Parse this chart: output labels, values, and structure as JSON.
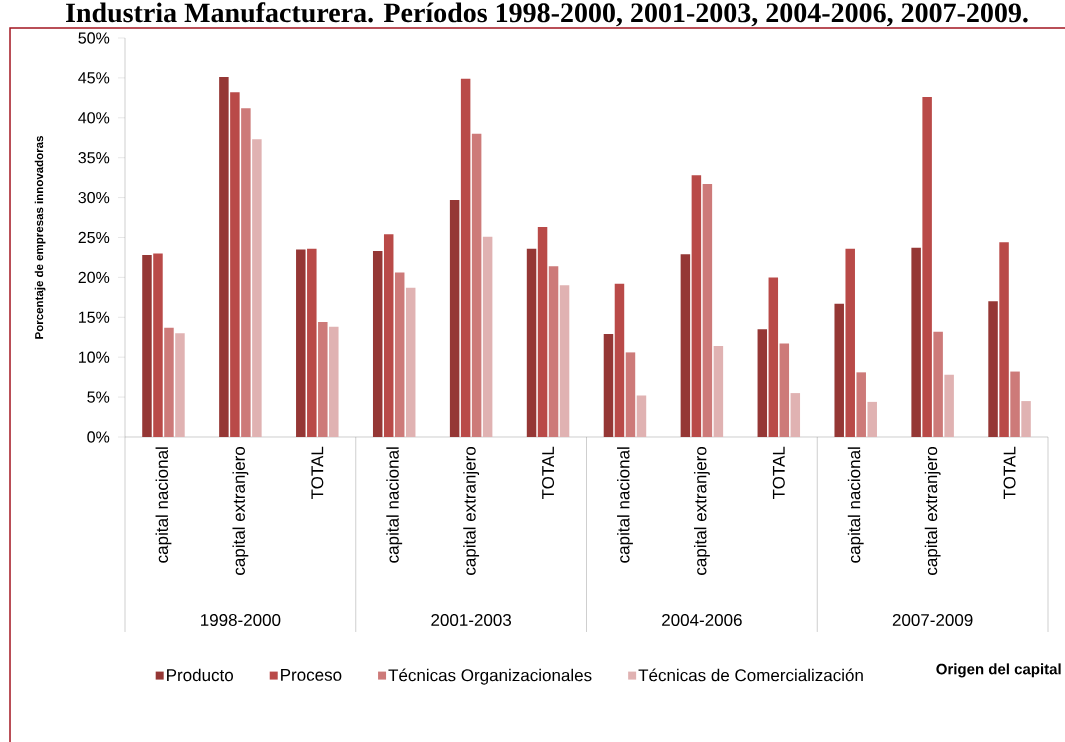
{
  "chart_data": {
    "type": "bar",
    "title": "Industria Manufacturera. Períodos 1998-2000, 2001-2003, 2004-2006, 2007-2009.",
    "ylabel": "Porcentaje de empresas innovadoras",
    "categories": [
      "capital nacional",
      "capital extranjero",
      "TOTAL",
      "capital nacional",
      "capital extranjero",
      "TOTAL",
      "capital nacional",
      "capital extranjero",
      "TOTAL",
      "capital nacional",
      "capital extranjero",
      "TOTAL"
    ],
    "annotations": [
      "1998-2000",
      "2001-2003",
      "2004-2006",
      "2007-2009",
      "Origen del capital"
    ],
    "series": [
      {
        "name": "Producto",
        "color": "#953735",
        "values": [
          22.8,
          45.1,
          23.5,
          23.3,
          29.7,
          23.6,
          12.9,
          22.9,
          13.5,
          16.7,
          23.7,
          17.0
        ]
      },
      {
        "name": "Proceso",
        "color": "#b94a48",
        "values": [
          23.0,
          43.2,
          23.6,
          25.4,
          44.9,
          26.3,
          19.2,
          32.8,
          20.0,
          23.6,
          42.6,
          24.4
        ]
      },
      {
        "name": "Técnicas Organizacionales",
        "color": "#cd7a79",
        "values": [
          13.7,
          41.2,
          14.4,
          20.6,
          38.0,
          21.4,
          10.6,
          31.7,
          11.7,
          8.1,
          13.2,
          8.2
        ]
      },
      {
        "name": "Técnicas de Comercialización",
        "color": "#e0b2b2",
        "values": [
          13.0,
          37.3,
          13.8,
          18.7,
          25.1,
          19.0,
          5.2,
          11.4,
          5.5,
          4.4,
          7.8,
          4.5
        ]
      }
    ],
    "ylim": [
      0,
      50
    ],
    "yticks": [
      {
        "value": 0,
        "label": "0%"
      },
      {
        "value": 5,
        "label": "5%"
      },
      {
        "value": 10,
        "label": "10%"
      },
      {
        "value": 15,
        "label": "15%"
      },
      {
        "value": 20,
        "label": "20%"
      },
      {
        "value": 25,
        "label": "25%"
      },
      {
        "value": 30,
        "label": "30%"
      },
      {
        "value": 35,
        "label": "35%"
      },
      {
        "value": 40,
        "label": "40%"
      },
      {
        "value": 45,
        "label": "45%"
      },
      {
        "value": 50,
        "label": "50%"
      }
    ],
    "legend": "bottom"
  }
}
